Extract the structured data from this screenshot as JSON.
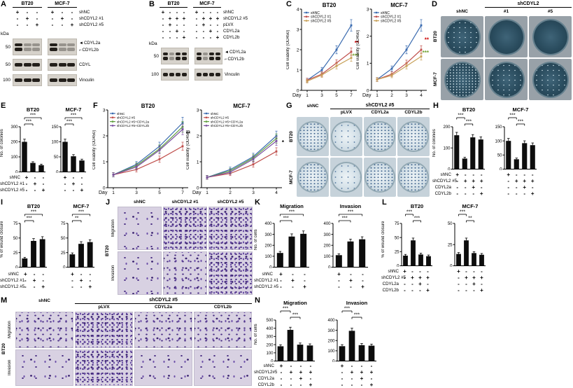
{
  "figure": {
    "background": "#ffffff"
  },
  "colors": {
    "dish_dark": "#2a4c5e",
    "dish_light": "#d7e3ea",
    "transwell_stain": "#4a2f84",
    "bar_fill": "#0d0d0d"
  },
  "panels": {
    "A": {
      "label": "A",
      "groups": [
        "BT20",
        "MCF-7"
      ],
      "kda": "kDa",
      "rows": [
        {
          "name": "shNC",
          "values": [
            "+",
            "-",
            "-",
            "+",
            "-",
            "-"
          ]
        },
        {
          "name": "shCDYL2 #1",
          "values": [
            "-",
            "+",
            "-",
            "-",
            "+",
            "-"
          ]
        },
        {
          "name": "shCDYL2 #5",
          "values": [
            "-",
            "-",
            "+",
            "-",
            "-",
            "+"
          ]
        }
      ],
      "strips": [
        {
          "marker": "50",
          "labels": [
            "CDYL2a",
            "CDYL2b"
          ]
        },
        {
          "marker": "50",
          "labels": [
            "CDYL"
          ]
        },
        {
          "marker": "100",
          "labels": [
            "Vinculin"
          ]
        }
      ]
    },
    "B": {
      "label": "B",
      "groups": [
        "BT20",
        "MCF-7"
      ],
      "kda": "kDa",
      "rows": [
        {
          "name": "shNC",
          "values": [
            "+",
            "-",
            "-",
            "-",
            "+",
            "-",
            "-",
            "-"
          ]
        },
        {
          "name": "shCDYL2 #5",
          "values": [
            "-",
            "+",
            "+",
            "+",
            "-",
            "+",
            "+",
            "+"
          ]
        },
        {
          "name": "pLVX",
          "values": [
            "-",
            "+",
            "-",
            "-",
            "-",
            "+",
            "-",
            "-"
          ]
        },
        {
          "name": "CDYL2a",
          "values": [
            "-",
            "-",
            "+",
            "-",
            "-",
            "-",
            "+",
            "-"
          ]
        },
        {
          "name": "CDYL2b",
          "values": [
            "-",
            "-",
            "-",
            "+",
            "-",
            "-",
            "-",
            "+"
          ]
        }
      ],
      "strips": [
        {
          "marker": "50",
          "labels": [
            "CDYL2a",
            "CDYL2b"
          ]
        },
        {
          "marker": "100",
          "labels": [
            "Vinculin"
          ]
        }
      ]
    },
    "C": {
      "label": "C"
    },
    "D": {
      "label": "D",
      "span_header": "shCDYL2",
      "cols": [
        "shNC",
        "#1",
        "#5"
      ],
      "row_labels": [
        "BT20",
        "MCF-7"
      ]
    },
    "E": {
      "label": "E",
      "ylabel": "No. of colonies",
      "rows": [
        {
          "name": "shNC",
          "values": [
            "+",
            "-",
            "-",
            "+",
            "-",
            "-"
          ]
        },
        {
          "name": "shCDYL2 #1",
          "values": [
            "-",
            "+",
            "-",
            "-",
            "+",
            "-"
          ]
        },
        {
          "name": "shCDYL2 #5",
          "values": [
            "-",
            "-",
            "+",
            "-",
            "-",
            "+"
          ]
        }
      ]
    },
    "F": {
      "label": "F"
    },
    "G": {
      "label": "G",
      "first_col": "shNC",
      "span_header": "shCDYL2 #5",
      "span_cols": [
        "pLVX",
        "CDYL2a",
        "CDYL2b"
      ],
      "row_labels": [
        "BT20",
        "MCF-7"
      ]
    },
    "H": {
      "label": "H",
      "ylabel": "No. of colonies",
      "rows": [
        {
          "name": "shNC",
          "values": [
            "+",
            "-",
            "-",
            "-",
            "+",
            "-",
            "-",
            "-"
          ]
        },
        {
          "name": "shCDYL2 #5",
          "values": [
            "-",
            "+",
            "+",
            "+",
            "-",
            "+",
            "+",
            "+"
          ]
        },
        {
          "name": "CDYL2a",
          "values": [
            "-",
            "-",
            "+",
            "-",
            "-",
            "-",
            "+",
            "-"
          ]
        },
        {
          "name": "CDYL2b",
          "values": [
            "-",
            "-",
            "-",
            "+",
            "-",
            "-",
            "-",
            "+"
          ]
        }
      ]
    },
    "I": {
      "label": "I",
      "ylabel": "% of wound closure",
      "rows": [
        {
          "name": "shNC",
          "values": [
            "+",
            "-",
            "-",
            "+",
            "-",
            "-"
          ]
        },
        {
          "name": "shCDYL2 #1",
          "values": [
            "-",
            "+",
            "-",
            "-",
            "+",
            "-"
          ]
        },
        {
          "name": "shCDYL2 #5",
          "values": [
            "-",
            "-",
            "+",
            "-",
            "-",
            "+"
          ]
        }
      ]
    },
    "J": {
      "label": "J",
      "cols": [
        "shNC",
        "shCDYL2 #1",
        "shCDYL2 #5"
      ],
      "row_labels": [
        "Migration",
        "Invasion"
      ],
      "side_label": "BT20"
    },
    "K": {
      "label": "K",
      "ylabel": "No. of cells",
      "rows": [
        {
          "name": "shNC",
          "values": [
            "+",
            "-",
            "-",
            "+",
            "-",
            "-"
          ]
        },
        {
          "name": "shCDYL2 #1",
          "values": [
            "-",
            "+",
            "-",
            "-",
            "+",
            "-"
          ]
        },
        {
          "name": "shCDYL2 #5",
          "values": [
            "-",
            "-",
            "+",
            "-",
            "-",
            "+"
          ]
        }
      ]
    },
    "L": {
      "label": "L",
      "ylabel": "% of wound closure",
      "rows": [
        {
          "name": "shNC",
          "values": [
            "+",
            "-",
            "-",
            "-",
            "+",
            "-",
            "-",
            "-"
          ]
        },
        {
          "name": "shCDYL2 #5",
          "values": [
            "-",
            "+",
            "+",
            "+",
            "-",
            "+",
            "+",
            "+"
          ]
        },
        {
          "name": "CDYL2a",
          "values": [
            "-",
            "-",
            "+",
            "-",
            "-",
            "-",
            "+",
            "-"
          ]
        },
        {
          "name": "CDYL2b",
          "values": [
            "-",
            "-",
            "-",
            "+",
            "-",
            "-",
            "-",
            "+"
          ]
        }
      ]
    },
    "M": {
      "label": "M",
      "first_col": "shNC",
      "span_header": "shCDYL2 #5",
      "span_cols": [
        "pLVX",
        "CDYL2a",
        "CDYL2b"
      ],
      "row_labels": [
        "Migration",
        "Invasion"
      ],
      "side_label": "BT20"
    },
    "N": {
      "label": "N",
      "ylabel": "No. of cells",
      "rows": [
        {
          "name": "shNC",
          "values": [
            "+",
            "-",
            "-",
            "-",
            "+",
            "-",
            "-",
            "-"
          ]
        },
        {
          "name": "shCDYL2#5",
          "values": [
            "-",
            "+",
            "+",
            "+",
            "-",
            "+",
            "+",
            "+"
          ]
        },
        {
          "name": "CDYL2a",
          "values": [
            "-",
            "-",
            "+",
            "-",
            "-",
            "-",
            "+",
            "-"
          ]
        },
        {
          "name": "CDYL2b",
          "values": [
            "-",
            "-",
            "-",
            "+",
            "-",
            "-",
            "-",
            "+"
          ]
        }
      ]
    }
  },
  "chart_data": [
    {
      "id": "c_bt20",
      "panel": "C",
      "type": "line",
      "title": "BT20",
      "ylabel": "Cell viability (OD450)",
      "xlabel": "Day",
      "x": [
        1,
        3,
        5,
        7
      ],
      "ylim": [
        0,
        4
      ],
      "yticks": [
        0,
        1,
        2,
        3,
        4
      ],
      "series": [
        {
          "name": "shNC",
          "color": "#3a6bb0",
          "values": [
            0.5,
            1.0,
            2.0,
            3.2
          ]
        },
        {
          "name": "shCDYL2 #1",
          "color": "#c0504d",
          "values": [
            0.5,
            0.8,
            1.35,
            1.9
          ]
        },
        {
          "name": "shCDYL2 #5",
          "color": "#c8a158",
          "values": [
            0.45,
            0.75,
            1.2,
            1.6
          ]
        }
      ],
      "sig": [
        {
          "t": "**",
          "color": "#cc0000",
          "fy": 0.44
        },
        {
          "t": "***",
          "color": "#70a030",
          "fy": 0.6
        }
      ]
    },
    {
      "id": "c_mcf7",
      "panel": "C",
      "type": "line",
      "title": "MCF-7",
      "ylabel": "Cell viability (OD450)",
      "xlabel": "Day",
      "x": [
        1,
        2,
        3,
        4
      ],
      "ylim": [
        0,
        3
      ],
      "yticks": [
        0,
        1,
        2,
        3
      ],
      "series": [
        {
          "name": "shNC",
          "color": "#3a6bb0",
          "values": [
            0.4,
            0.8,
            1.5,
            2.4
          ]
        },
        {
          "name": "shCDYL2 #1",
          "color": "#c0504d",
          "values": [
            0.4,
            0.6,
            1.0,
            1.5
          ]
        },
        {
          "name": "shCDYL2 #5",
          "color": "#c8a158",
          "values": [
            0.4,
            0.55,
            0.9,
            1.25
          ]
        }
      ],
      "sig": [
        {
          "t": "**",
          "color": "#cc0000",
          "fy": 0.4
        },
        {
          "t": "***",
          "color": "#70a030",
          "fy": 0.56
        }
      ]
    },
    {
      "id": "f_bt20",
      "panel": "F",
      "type": "line",
      "title": "BT20",
      "ylabel": "Cell viability (OD450)",
      "xlabel": "Day",
      "x": [
        1,
        3,
        5,
        7
      ],
      "ylim": [
        0,
        3
      ],
      "yticks": [
        0,
        1,
        2,
        3
      ],
      "series": [
        {
          "name": "shNC",
          "color": "#3a6bb0",
          "values": [
            0.5,
            0.9,
            1.6,
            2.5
          ]
        },
        {
          "name": "shCDYL2 #5",
          "color": "#c0504d",
          "values": [
            0.5,
            0.7,
            1.1,
            1.6
          ]
        },
        {
          "name": "shCDYL2 #5+CDYL2a",
          "color": "#5f9e3f",
          "values": [
            0.5,
            0.85,
            1.5,
            2.35
          ]
        },
        {
          "name": "shCDYL2 #5+CDYL2b",
          "color": "#7a4fa0",
          "values": [
            0.5,
            0.8,
            1.45,
            2.25
          ]
        }
      ],
      "sig": [
        {
          "t": "**",
          "color": "#000000",
          "fy": 0.33
        }
      ]
    },
    {
      "id": "f_mcf7",
      "panel": "F",
      "type": "line",
      "title": "MCF-7",
      "ylabel": "Cell viability (OD450)",
      "xlabel": "Day",
      "x": [
        1,
        2,
        3,
        4
      ],
      "ylim": [
        0,
        3
      ],
      "yticks": [
        0,
        1,
        2,
        3
      ],
      "series": [
        {
          "name": "shNC",
          "color": "#3a6bb0",
          "values": [
            0.4,
            0.7,
            1.2,
            2.0
          ]
        },
        {
          "name": "shCDYL2 #5",
          "color": "#c0504d",
          "values": [
            0.4,
            0.55,
            0.9,
            1.4
          ]
        },
        {
          "name": "shCDYL2 #5+CDYL2a",
          "color": "#5f9e3f",
          "values": [
            0.4,
            0.65,
            1.15,
            1.9
          ]
        },
        {
          "name": "shCDYL2 #5+CDYL2b",
          "color": "#7a4fa0",
          "values": [
            0.4,
            0.6,
            1.1,
            1.8
          ]
        }
      ],
      "sig": [
        {
          "t": "*",
          "color": "#000000",
          "fy": 0.44
        }
      ]
    },
    {
      "id": "e_bt20",
      "panel": "E",
      "type": "bar",
      "title": "BT20",
      "ylim": [
        0,
        300
      ],
      "yticks": [
        0,
        100,
        200,
        300
      ],
      "values": [
        200,
        60,
        45
      ],
      "sig": [
        {
          "a": 0,
          "b": 1,
          "t": "***",
          "l": 0
        },
        {
          "a": 0,
          "b": 2,
          "t": "***",
          "l": 1
        }
      ]
    },
    {
      "id": "e_mcf7",
      "panel": "E",
      "type": "bar",
      "title": "MCF-7",
      "ylim": [
        0,
        150
      ],
      "yticks": [
        0,
        50,
        100,
        150
      ],
      "values": [
        100,
        52,
        38
      ],
      "sig": [
        {
          "a": 0,
          "b": 1,
          "t": "***",
          "l": 0
        },
        {
          "a": 0,
          "b": 2,
          "t": "***",
          "l": 1
        }
      ]
    },
    {
      "id": "h_bt20",
      "panel": "H",
      "type": "bar",
      "title": "BT20",
      "ylim": [
        0,
        200
      ],
      "yticks": [
        0,
        100,
        200
      ],
      "values": [
        160,
        50,
        150,
        140
      ],
      "sig": [
        {
          "a": 0,
          "b": 1,
          "t": "***",
          "l": 1
        },
        {
          "a": 1,
          "b": 2,
          "t": "***",
          "l": 0
        }
      ]
    },
    {
      "id": "h_mcf7",
      "panel": "H",
      "type": "bar",
      "title": "MCF-7",
      "ylim": [
        0,
        150
      ],
      "yticks": [
        0,
        50,
        100,
        150
      ],
      "values": [
        100,
        35,
        92,
        85
      ],
      "sig": [
        {
          "a": 0,
          "b": 1,
          "t": "***",
          "l": 1
        },
        {
          "a": 1,
          "b": 2,
          "t": "***",
          "l": 0
        }
      ]
    },
    {
      "id": "i_bt20",
      "panel": "I",
      "type": "bar",
      "title": "BT20",
      "ylim": [
        0,
        75
      ],
      "yticks": [
        0,
        25,
        50,
        75
      ],
      "values": [
        15,
        45,
        48
      ],
      "sig": [
        {
          "a": 0,
          "b": 1,
          "t": "***",
          "l": 0
        },
        {
          "a": 0,
          "b": 2,
          "t": "***",
          "l": 1
        }
      ]
    },
    {
      "id": "i_mcf7",
      "panel": "I",
      "type": "bar",
      "title": "MCF-7",
      "ylim": [
        0,
        75
      ],
      "yticks": [
        0,
        25,
        50,
        75
      ],
      "values": [
        22,
        40,
        43
      ],
      "sig": [
        {
          "a": 0,
          "b": 1,
          "t": "**",
          "l": 0
        },
        {
          "a": 0,
          "b": 2,
          "t": "***",
          "l": 1
        }
      ]
    },
    {
      "id": "k_mig",
      "panel": "K",
      "type": "bar",
      "title": "Migration",
      "ylim": [
        0,
        400
      ],
      "yticks": [
        0,
        100,
        200,
        300,
        400
      ],
      "values": [
        130,
        280,
        305
      ],
      "sig": [
        {
          "a": 0,
          "b": 1,
          "t": "***",
          "l": 0
        },
        {
          "a": 0,
          "b": 2,
          "t": "***",
          "l": 1
        }
      ]
    },
    {
      "id": "k_inv",
      "panel": "K",
      "type": "bar",
      "title": "Invasion",
      "ylim": [
        0,
        400
      ],
      "yticks": [
        0,
        100,
        200,
        300,
        400
      ],
      "values": [
        110,
        235,
        255
      ],
      "sig": [
        {
          "a": 0,
          "b": 1,
          "t": "***",
          "l": 0
        },
        {
          "a": 0,
          "b": 2,
          "t": "***",
          "l": 1
        }
      ]
    },
    {
      "id": "l_bt20",
      "panel": "L",
      "type": "bar",
      "title": "BT20",
      "ylim": [
        0,
        75
      ],
      "yticks": [
        0,
        25,
        50,
        75
      ],
      "values": [
        18,
        45,
        20,
        17
      ],
      "sig": [
        {
          "a": 0,
          "b": 1,
          "t": "***",
          "l": 1
        },
        {
          "a": 1,
          "b": 2,
          "t": "***",
          "l": 0
        }
      ]
    },
    {
      "id": "l_mcf7",
      "panel": "L",
      "type": "bar",
      "title": "MCF-7",
      "ylim": [
        0,
        50
      ],
      "yticks": [
        0,
        25,
        50
      ],
      "values": [
        14,
        30,
        15,
        13
      ],
      "sig": [
        {
          "a": 0,
          "b": 1,
          "t": "***",
          "l": 1
        },
        {
          "a": 1,
          "b": 2,
          "t": "**",
          "l": 0
        }
      ]
    },
    {
      "id": "n_mig",
      "panel": "N",
      "type": "bar",
      "title": "Migration",
      "ylim": [
        0,
        500
      ],
      "yticks": [
        0,
        100,
        200,
        300,
        400,
        500
      ],
      "values": [
        180,
        380,
        200,
        190
      ],
      "sig": [
        {
          "a": 0,
          "b": 1,
          "t": "***",
          "l": 1
        },
        {
          "a": 1,
          "b": 2,
          "t": "***",
          "l": 0
        }
      ]
    },
    {
      "id": "n_inv",
      "panel": "N",
      "type": "bar",
      "title": "Invasion",
      "ylim": [
        0,
        400
      ],
      "yticks": [
        0,
        100,
        200,
        300,
        400
      ],
      "values": [
        145,
        295,
        155,
        150
      ],
      "sig": [
        {
          "a": 0,
          "b": 1,
          "t": "***",
          "l": 1
        },
        {
          "a": 1,
          "b": 2,
          "t": "***",
          "l": 0
        }
      ]
    }
  ]
}
